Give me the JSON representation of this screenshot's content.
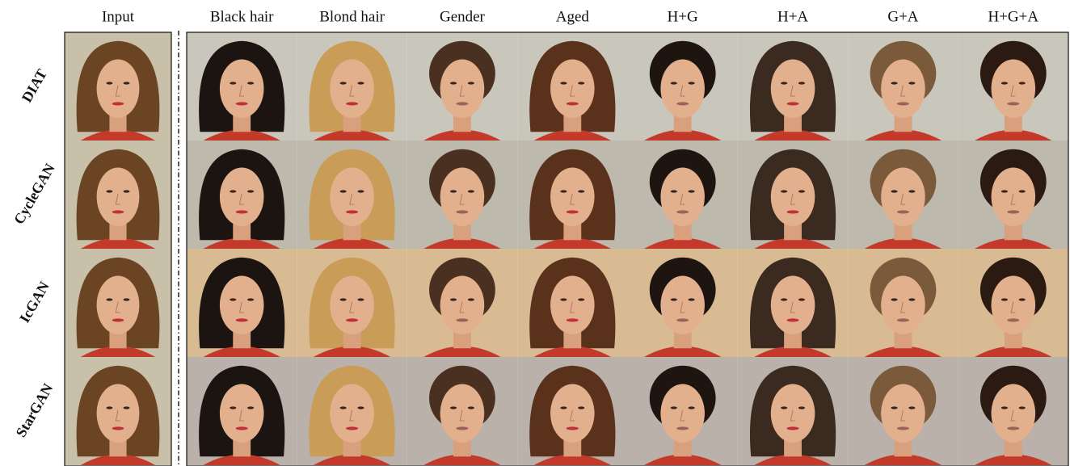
{
  "columns": {
    "input": "Input",
    "edits": [
      "Black hair",
      "Blond hair",
      "Gender",
      "Aged",
      "H+G",
      "H+A",
      "G+A",
      "H+G+A"
    ]
  },
  "rows": [
    "DIAT",
    "CycleGAN",
    "IcGAN",
    "StarGAN"
  ]
}
